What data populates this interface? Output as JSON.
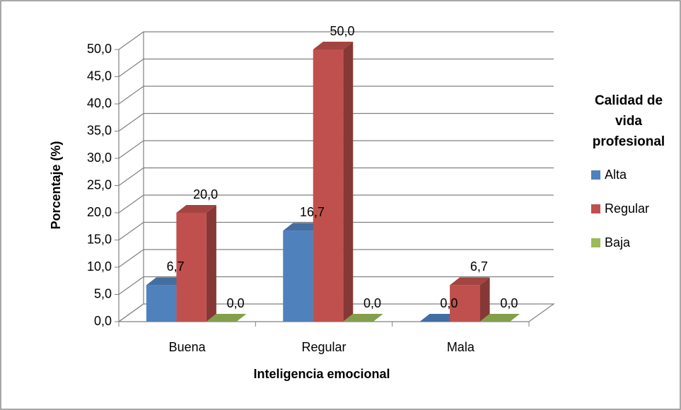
{
  "chart_data": {
    "type": "bar3d",
    "x_axis_label": "Inteligencia emocional",
    "y_axis_label": "Porcentaje (%)",
    "legend_title": "Calidad de vida profesional",
    "legend_position": "right",
    "categories": [
      "Buena",
      "Regular",
      "Mala"
    ],
    "series": [
      {
        "name": "Alta",
        "color": "#4f81bd",
        "values": [
          6.7,
          16.7,
          0
        ],
        "value_labels": [
          "6,7",
          "16,7",
          "0,0"
        ]
      },
      {
        "name": "Regular",
        "color": "#c0504d",
        "values": [
          20,
          50,
          6.7
        ],
        "value_labels": [
          "20,0",
          "50,0",
          "6,7"
        ]
      },
      {
        "name": "Baja",
        "color": "#9bbb59",
        "values": [
          0,
          0,
          0
        ],
        "value_labels": [
          "0,0",
          "0,0",
          "0,0"
        ]
      }
    ],
    "ylim": [
      0,
      50
    ],
    "yticks": [
      {
        "value": 0,
        "label": "0,0"
      },
      {
        "value": 5,
        "label": "5,0"
      },
      {
        "value": 10,
        "label": "10,0"
      },
      {
        "value": 15,
        "label": "15,0"
      },
      {
        "value": 20,
        "label": "20,0"
      },
      {
        "value": 25,
        "label": "25,0"
      },
      {
        "value": 30,
        "label": "30,0"
      },
      {
        "value": 35,
        "label": "35,0"
      },
      {
        "value": 40,
        "label": "40,0"
      },
      {
        "value": 45,
        "label": "45,0"
      },
      {
        "value": 50,
        "label": "50,0"
      }
    ],
    "grid": true
  }
}
